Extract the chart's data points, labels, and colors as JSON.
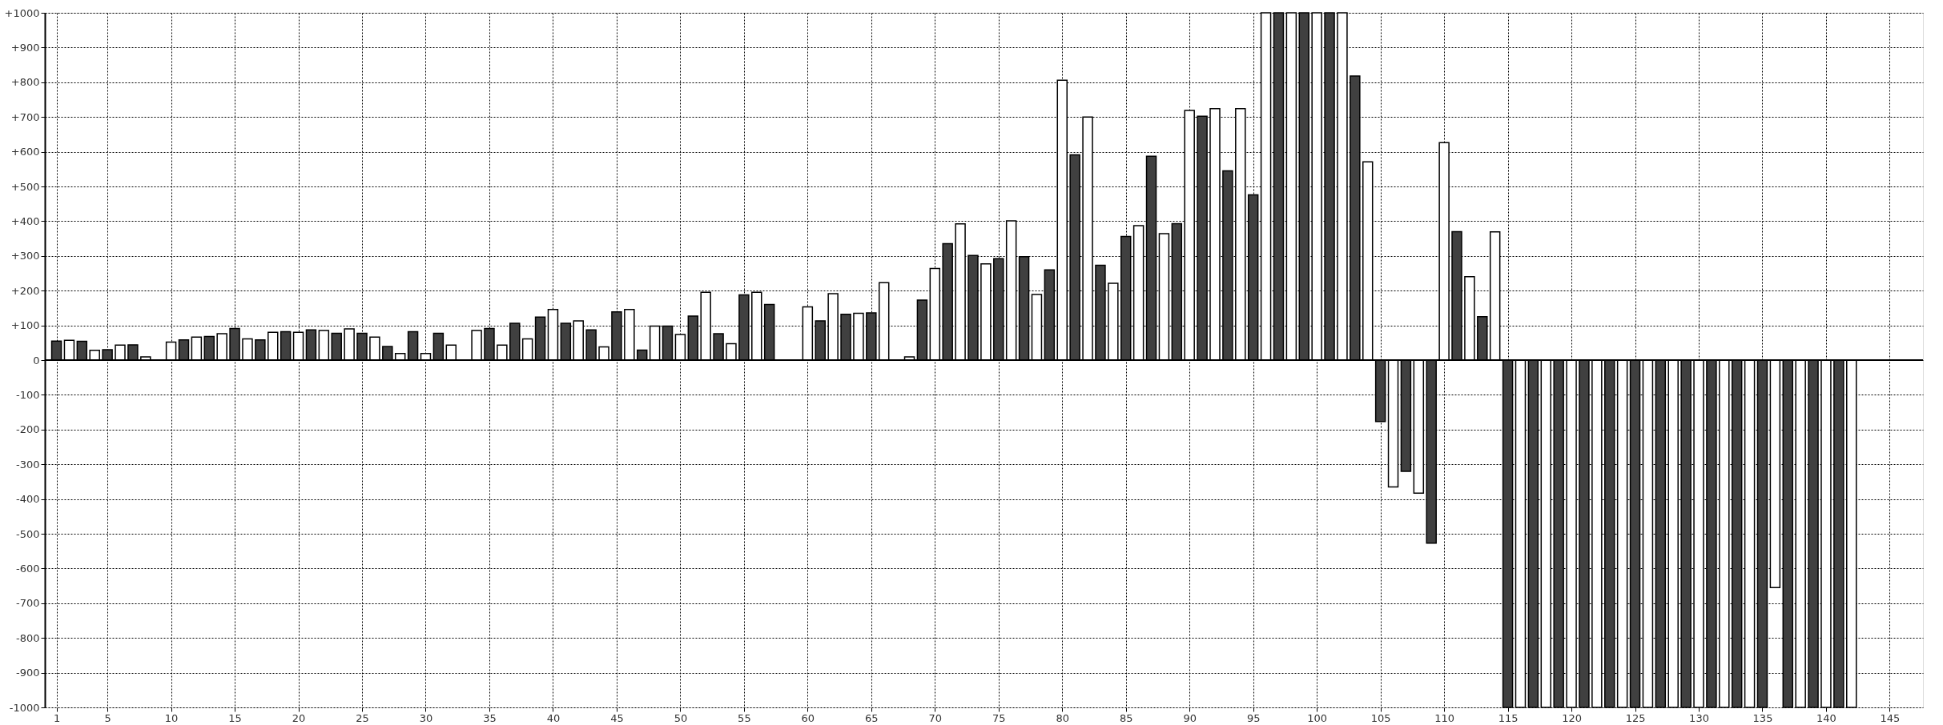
{
  "chart_data": {
    "type": "bar",
    "x": [
      1,
      2,
      3,
      4,
      5,
      6,
      7,
      8,
      9,
      10,
      11,
      12,
      13,
      14,
      15,
      16,
      17,
      18,
      19,
      20,
      21,
      22,
      23,
      24,
      25,
      26,
      27,
      28,
      29,
      30,
      31,
      32,
      33,
      34,
      35,
      36,
      37,
      38,
      39,
      40,
      41,
      42,
      43,
      44,
      45,
      46,
      47,
      48,
      49,
      50,
      51,
      52,
      53,
      54,
      55,
      56,
      57,
      58,
      59,
      60,
      61,
      62,
      63,
      64,
      65,
      66,
      67,
      68,
      69,
      70,
      71,
      72,
      73,
      74,
      75,
      76,
      77,
      78,
      79,
      80,
      81,
      82,
      83,
      84,
      85,
      86,
      87,
      88,
      89,
      90,
      91,
      92,
      93,
      94,
      95,
      96,
      97,
      98,
      99,
      100,
      101,
      102,
      103,
      104,
      105,
      106,
      107,
      108,
      109,
      110,
      111,
      112,
      113,
      114,
      115,
      116,
      117,
      118,
      119,
      120,
      121,
      122,
      123,
      124,
      125,
      126,
      127,
      128,
      129,
      130,
      131,
      132,
      133,
      134,
      135,
      136,
      137,
      138,
      139,
      140,
      141,
      142
    ],
    "values": [
      55,
      57,
      54,
      28,
      30,
      43,
      44,
      9,
      null,
      52,
      58,
      66,
      68,
      76,
      91,
      61,
      58,
      80,
      82,
      80,
      87,
      85,
      77,
      90,
      77,
      66,
      39,
      19,
      82,
      19,
      77,
      43,
      null,
      85,
      91,
      43,
      106,
      61,
      124,
      146,
      106,
      113,
      87,
      38,
      139,
      146,
      29,
      98,
      98,
      74,
      127,
      195,
      76,
      47,
      188,
      195,
      160,
      null,
      null,
      153,
      113,
      191,
      132,
      135,
      136,
      223,
      null,
      9,
      173,
      264,
      335,
      392,
      301,
      277,
      292,
      401,
      298,
      189,
      260,
      806,
      591,
      700,
      273,
      221,
      356,
      387,
      587,
      364,
      393,
      719,
      702,
      724,
      545,
      724,
      476,
      1000,
      1000,
      1000,
      1000,
      1000,
      1000,
      1000,
      818,
      571,
      -177,
      -365,
      -320,
      -383,
      -527,
      626,
      370,
      240,
      125,
      369,
      -1000,
      -1000,
      -1000,
      -1000,
      -1000,
      -1000,
      -1000,
      -1000,
      -1000,
      -1000,
      -1000,
      -1000,
      -1000,
      -1000,
      -1000,
      -1000,
      -1000,
      -1000,
      -1000,
      -1000,
      -1000,
      -655,
      -1000,
      -1000,
      -1000,
      -1000,
      -1000,
      -1000
    ],
    "colors": [
      "#404040",
      "#ffffff",
      "#404040",
      "#ffffff",
      "#404040",
      "#ffffff",
      "#404040",
      "#ffffff",
      "#404040",
      "#ffffff",
      "#404040",
      "#ffffff",
      "#404040",
      "#ffffff",
      "#404040",
      "#ffffff",
      "#404040",
      "#ffffff",
      "#404040",
      "#ffffff",
      "#404040",
      "#ffffff",
      "#404040",
      "#ffffff",
      "#404040",
      "#ffffff",
      "#404040",
      "#ffffff",
      "#404040",
      "#ffffff",
      "#404040",
      "#ffffff",
      "#404040",
      "#ffffff",
      "#404040",
      "#ffffff",
      "#404040",
      "#ffffff",
      "#404040",
      "#ffffff",
      "#404040",
      "#ffffff",
      "#404040",
      "#ffffff",
      "#404040",
      "#ffffff",
      "#404040",
      "#ffffff",
      "#404040",
      "#ffffff",
      "#404040",
      "#ffffff",
      "#404040",
      "#ffffff",
      "#404040",
      "#ffffff",
      "#404040",
      "#ffffff",
      "#404040",
      "#ffffff",
      "#404040",
      "#ffffff",
      "#404040",
      "#ffffff",
      "#404040",
      "#ffffff",
      "#404040",
      "#ffffff",
      "#404040",
      "#ffffff",
      "#404040",
      "#ffffff",
      "#404040",
      "#ffffff",
      "#404040",
      "#ffffff",
      "#404040",
      "#ffffff",
      "#404040",
      "#ffffff",
      "#404040",
      "#ffffff",
      "#404040",
      "#ffffff",
      "#404040",
      "#ffffff",
      "#404040",
      "#ffffff",
      "#404040",
      "#ffffff",
      "#404040",
      "#ffffff",
      "#404040",
      "#ffffff",
      "#404040",
      "#ffffff",
      "#404040",
      "#ffffff",
      "#404040",
      "#ffffff",
      "#404040",
      "#ffffff",
      "#404040",
      "#ffffff",
      "#404040",
      "#ffffff",
      "#404040",
      "#ffffff",
      "#404040",
      "#ffffff",
      "#404040",
      "#ffffff",
      "#404040",
      "#ffffff",
      "#404040",
      "#ffffff",
      "#404040",
      "#ffffff",
      "#404040",
      "#ffffff",
      "#404040",
      "#ffffff",
      "#404040",
      "#ffffff",
      "#404040",
      "#ffffff",
      "#404040",
      "#ffffff",
      "#404040",
      "#ffffff",
      "#404040",
      "#ffffff",
      "#404040",
      "#ffffff",
      "#404040",
      "#ffffff",
      "#404040",
      "#ffffff",
      "#404040",
      "#ffffff",
      "#404040",
      "#ffffff"
    ],
    "xlim": [
      0.4,
      147.3
    ],
    "xticks": [
      1,
      5,
      10,
      15,
      20,
      25,
      30,
      35,
      40,
      45,
      50,
      55,
      60,
      65,
      70,
      75,
      80,
      85,
      90,
      95,
      100,
      105,
      110,
      115,
      120,
      125,
      130,
      135,
      140,
      145
    ],
    "ylim": [
      -1000,
      1000
    ],
    "yticks": [
      {
        "value": 1000,
        "label": "+1000"
      },
      {
        "value": 900,
        "label": "+900"
      },
      {
        "value": 800,
        "label": "+800"
      },
      {
        "value": 700,
        "label": "+700"
      },
      {
        "value": 600,
        "label": "+600"
      },
      {
        "value": 500,
        "label": "+500"
      },
      {
        "value": 400,
        "label": "+400"
      },
      {
        "value": 300,
        "label": "+300"
      },
      {
        "value": 200,
        "label": "+200"
      },
      {
        "value": 100,
        "label": "+100"
      },
      0,
      {
        "value": -100,
        "label": "-100"
      },
      {
        "value": -200,
        "label": "-200"
      },
      {
        "value": -300,
        "label": "-300"
      },
      {
        "value": -400,
        "label": "-400"
      },
      {
        "value": -500,
        "label": "-500"
      },
      {
        "value": -600,
        "label": "-600"
      },
      {
        "value": -700,
        "label": "-700"
      },
      {
        "value": -800,
        "label": "-800"
      },
      {
        "value": -900,
        "label": "-900"
      },
      {
        "value": -1000,
        "label": "-1000"
      }
    ],
    "ref_lines": [
      {
        "axis": "y",
        "value": 0,
        "color": "#000000"
      }
    ],
    "grid": true
  }
}
